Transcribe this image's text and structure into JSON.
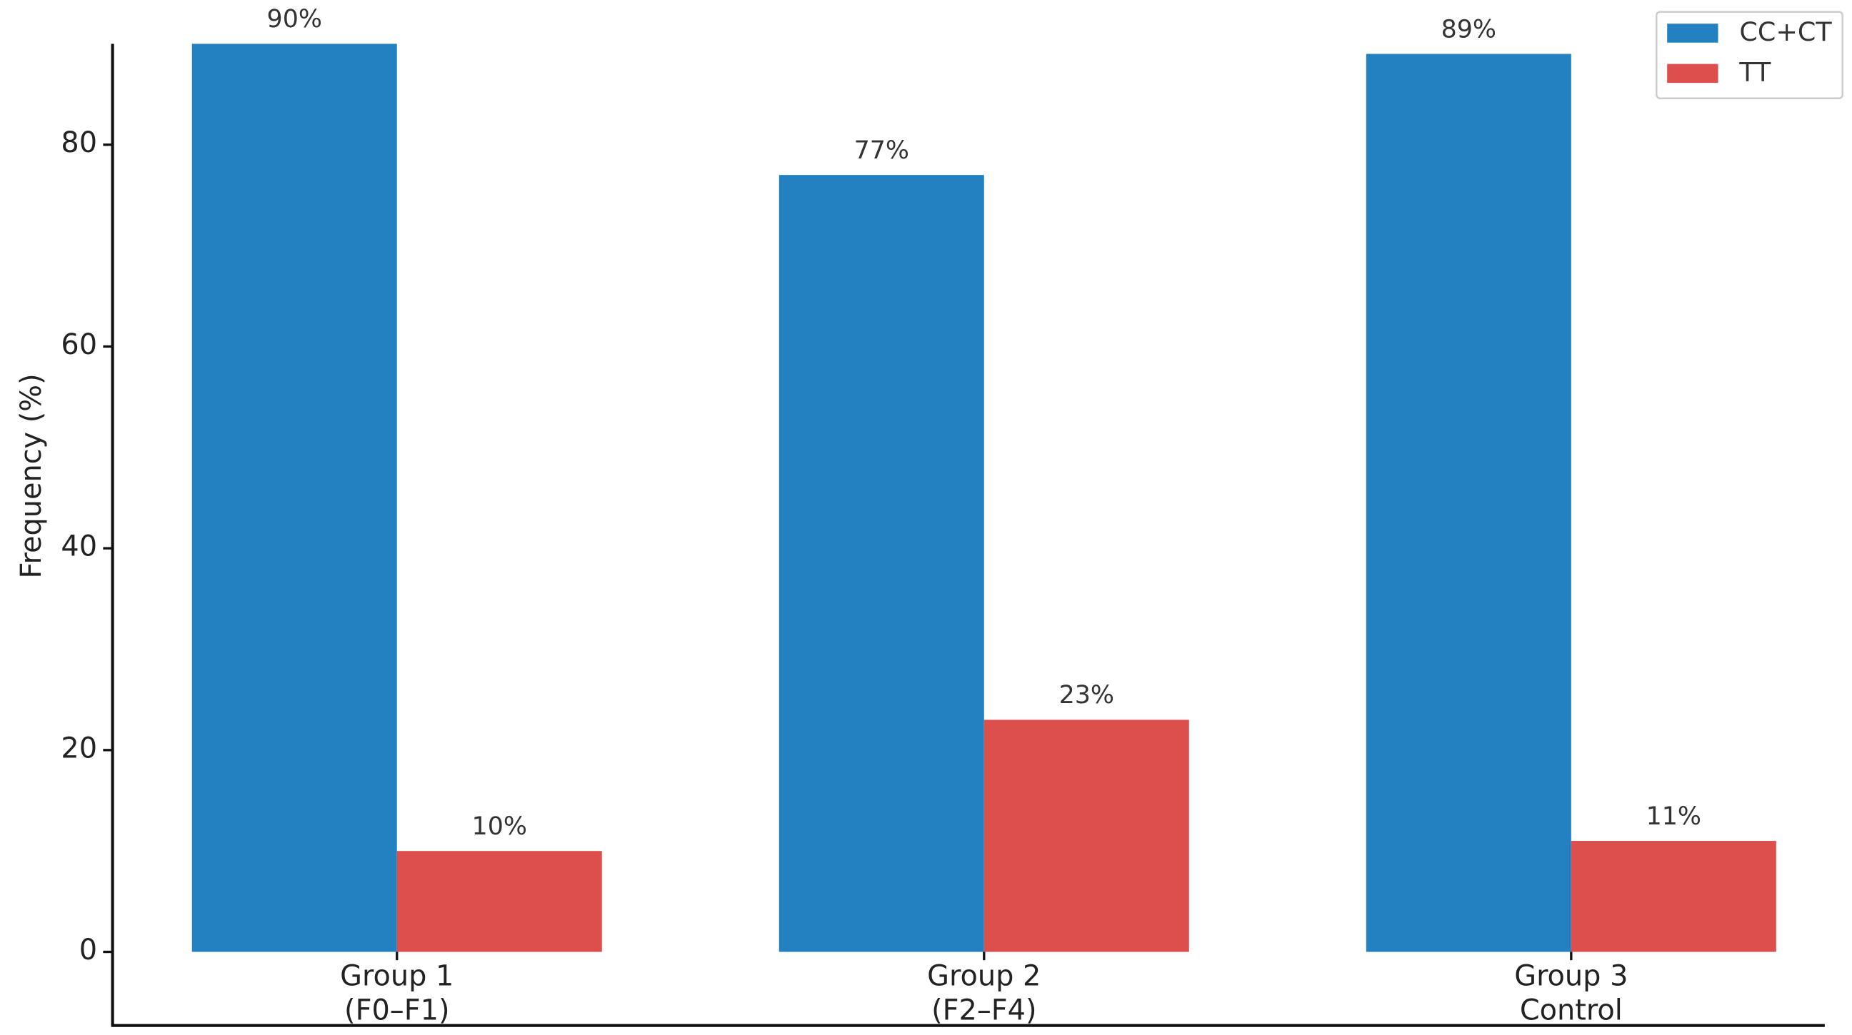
{
  "chart_data": {
    "type": "bar",
    "y_label": "Frequency (%)",
    "categories": [
      "Group 1\n(F0–F1)",
      "Group 2\n(F2–F4)",
      "Group 3\nControl"
    ],
    "series": [
      {
        "name": "CC+CT",
        "color": "#2481c1",
        "values": [
          90,
          77,
          89
        ],
        "value_labels": [
          "90%",
          "77%",
          "89%"
        ]
      },
      {
        "name": "TT",
        "color": "#dc4f4c",
        "values": [
          10,
          23,
          11
        ],
        "value_labels": [
          "10%",
          "23%",
          "11%"
        ]
      }
    ],
    "ylim": [
      -7.3,
      90
    ],
    "yticks": [
      0,
      20,
      40,
      60,
      80
    ],
    "legend": "upper right"
  }
}
